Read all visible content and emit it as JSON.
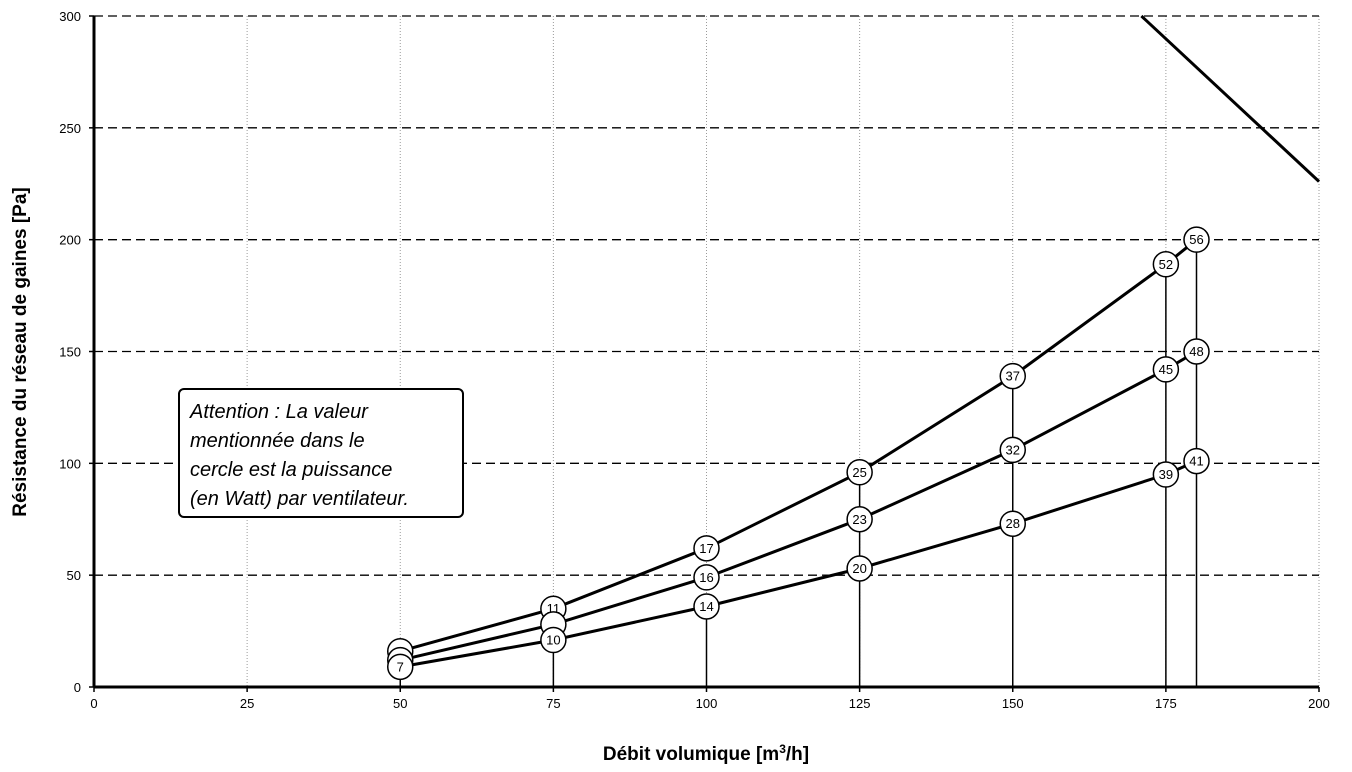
{
  "chart_data": {
    "type": "line",
    "xlabel": "Débit volumique [m",
    "xlabel_sup": "3",
    "xlabel_end": "/h]",
    "ylabel": "Résistance du réseau de gaines [Pa]",
    "xlim": [
      0,
      200
    ],
    "ylim": [
      0,
      300
    ],
    "x_ticks": [
      "0",
      "25",
      "50",
      "75",
      "100",
      "125",
      "150",
      "175",
      "200"
    ],
    "y_ticks": [
      "0",
      "50",
      "100",
      "150",
      "200",
      "250",
      "300"
    ],
    "grid": {
      "vertical": "dotted",
      "horizontal": "dashed"
    },
    "series": [
      {
        "points": [
          {
            "x": 50,
            "y": 16,
            "label": ""
          },
          {
            "x": 75,
            "y": 35,
            "label": "11"
          },
          {
            "x": 100,
            "y": 62,
            "label": "17"
          },
          {
            "x": 125,
            "y": 96,
            "label": "25"
          },
          {
            "x": 150,
            "y": 139,
            "label": "37"
          },
          {
            "x": 175,
            "y": 189,
            "label": "52"
          },
          {
            "x": 180,
            "y": 200,
            "label": "56"
          }
        ]
      },
      {
        "points": [
          {
            "x": 50,
            "y": 12,
            "label": ""
          },
          {
            "x": 75,
            "y": 28,
            "label": ""
          },
          {
            "x": 100,
            "y": 49,
            "label": "16"
          },
          {
            "x": 125,
            "y": 75,
            "label": "23"
          },
          {
            "x": 150,
            "y": 106,
            "label": "32"
          },
          {
            "x": 175,
            "y": 142,
            "label": "45"
          },
          {
            "x": 180,
            "y": 150,
            "label": "48"
          }
        ]
      },
      {
        "points": [
          {
            "x": 50,
            "y": 9,
            "label": "7"
          },
          {
            "x": 75,
            "y": 21,
            "label": "10"
          },
          {
            "x": 100,
            "y": 36,
            "label": "14"
          },
          {
            "x": 125,
            "y": 53,
            "label": "20"
          },
          {
            "x": 150,
            "y": 73,
            "label": "28"
          },
          {
            "x": 175,
            "y": 95,
            "label": "39"
          },
          {
            "x": 180,
            "y": 101,
            "label": "41"
          }
        ]
      },
      {
        "points": [
          {
            "x": 171,
            "y": 300
          },
          {
            "x": 200,
            "y": 226
          }
        ]
      }
    ],
    "verticals": [
      {
        "x": 50,
        "y_top": 9
      },
      {
        "x": 75,
        "y_top": 21
      },
      {
        "x": 100,
        "y_top": 36
      },
      {
        "x": 125,
        "y_top": 96
      },
      {
        "x": 150,
        "y_top": 139
      },
      {
        "x": 175,
        "y_top": 189
      },
      {
        "x": 180,
        "y_top": 200
      }
    ]
  },
  "note": {
    "lines": [
      "Attention : La valeur",
      "mentionnée dans le",
      "cercle est la puissance",
      "(en Watt) par ventilateur."
    ]
  }
}
